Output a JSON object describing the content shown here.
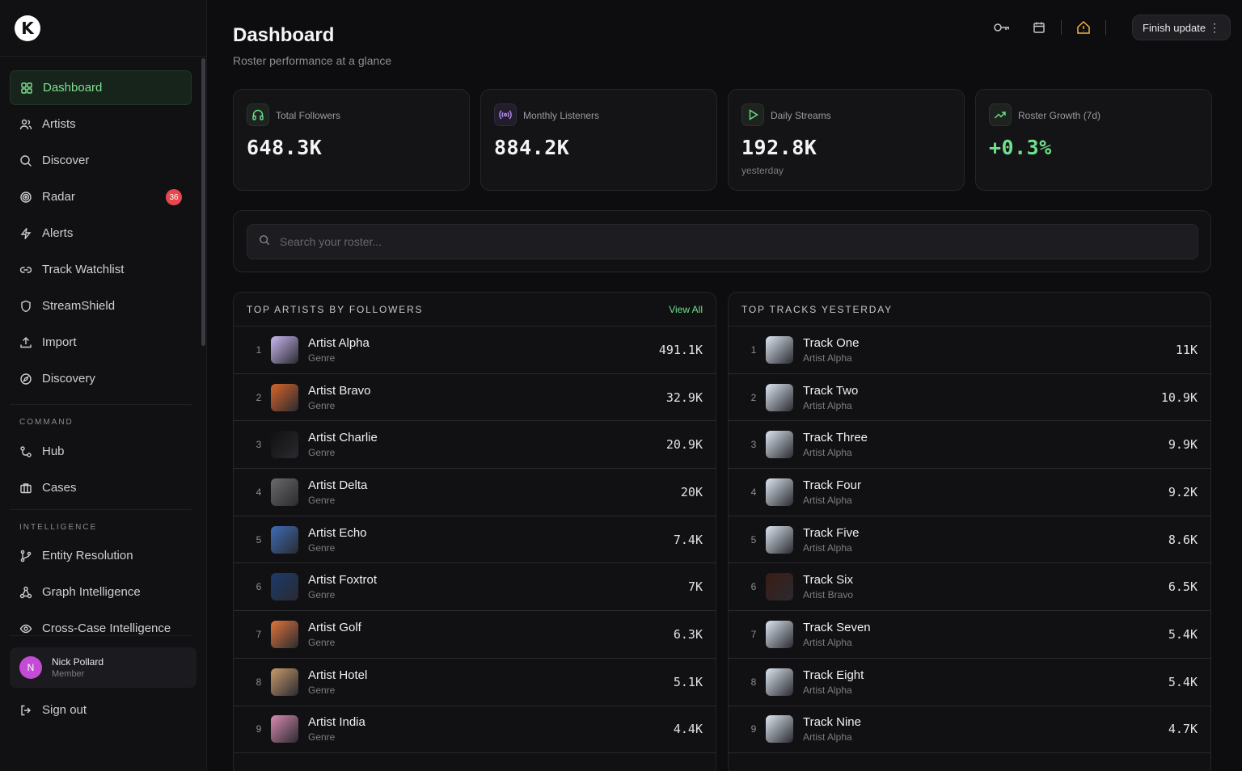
{
  "app": {
    "logo_letter": "K"
  },
  "sidebar": {
    "items": [
      {
        "label": "Dashboard",
        "icon": "grid-icon",
        "active": true
      },
      {
        "label": "Artists",
        "icon": "users-icon"
      },
      {
        "label": "Discover",
        "icon": "search-icon"
      },
      {
        "label": "Radar",
        "icon": "radar-icon",
        "badge": "36"
      },
      {
        "label": "Alerts",
        "icon": "bolt-icon"
      },
      {
        "label": "Track Watchlist",
        "icon": "link-icon"
      },
      {
        "label": "StreamShield",
        "icon": "shield-icon"
      },
      {
        "label": "Import",
        "icon": "upload-icon"
      },
      {
        "label": "Discovery",
        "icon": "compass-icon"
      }
    ],
    "command_label": "COMMAND",
    "command_items": [
      {
        "label": "Hub",
        "icon": "hub-icon"
      },
      {
        "label": "Cases",
        "icon": "briefcase-icon"
      }
    ],
    "intelligence_label": "INTELLIGENCE",
    "intelligence_items": [
      {
        "label": "Entity Resolution",
        "icon": "git-branch-icon"
      },
      {
        "label": "Graph Intelligence",
        "icon": "graph-icon"
      },
      {
        "label": "Cross-Case Intelligence",
        "icon": "eye-icon"
      }
    ],
    "user": {
      "initial": "N",
      "name": "Nick Pollard",
      "role": "Member"
    },
    "sign_out": "Sign out"
  },
  "header": {
    "title": "Dashboard",
    "subtitle": "Roster performance at a glance",
    "finish_update": "Finish update"
  },
  "stats": [
    {
      "label": "Total Followers",
      "value": "648.3K",
      "icon": "headphones-icon"
    },
    {
      "label": "Monthly Listeners",
      "value": "884.2K",
      "icon": "broadcast-icon"
    },
    {
      "label": "Daily Streams",
      "value": "192.8K",
      "note": "yesterday",
      "icon": "play-icon"
    },
    {
      "label": "Roster Growth (7d)",
      "value": "+0.3%",
      "icon": "trending-up-icon"
    }
  ],
  "search": {
    "placeholder": "Search your roster..."
  },
  "top_artists": {
    "title": "TOP ARTISTS BY FOLLOWERS",
    "view_all": "View All",
    "rows": [
      {
        "rank": "1",
        "name": "Artist Alpha",
        "sub": "Genre",
        "value": "491.1K",
        "color": "#c9b8f0"
      },
      {
        "rank": "2",
        "name": "Artist Bravo",
        "sub": "Genre",
        "value": "32.9K",
        "color": "#d8642a"
      },
      {
        "rank": "3",
        "name": "Artist Charlie",
        "sub": "Genre",
        "value": "20.9K",
        "color": "#101010"
      },
      {
        "rank": "4",
        "name": "Artist Delta",
        "sub": "Genre",
        "value": "20K",
        "color": "#6a6a6a"
      },
      {
        "rank": "5",
        "name": "Artist Echo",
        "sub": "Genre",
        "value": "7.4K",
        "color": "#3d6db8"
      },
      {
        "rank": "6",
        "name": "Artist Foxtrot",
        "sub": "Genre",
        "value": "7K",
        "color": "#1b3a6b"
      },
      {
        "rank": "7",
        "name": "Artist Golf",
        "sub": "Genre",
        "value": "6.3K",
        "color": "#e0743a"
      },
      {
        "rank": "8",
        "name": "Artist Hotel",
        "sub": "Genre",
        "value": "5.1K",
        "color": "#c89a6a"
      },
      {
        "rank": "9",
        "name": "Artist India",
        "sub": "Genre",
        "value": "4.4K",
        "color": "#d98ab0"
      }
    ]
  },
  "top_tracks": {
    "title": "TOP TRACKS YESTERDAY",
    "rows": [
      {
        "rank": "1",
        "name": "Track One",
        "sub": "Artist Alpha",
        "value": "11K",
        "color": "#dce6f0"
      },
      {
        "rank": "2",
        "name": "Track Two",
        "sub": "Artist Alpha",
        "value": "10.9K",
        "color": "#dce6f0"
      },
      {
        "rank": "3",
        "name": "Track Three",
        "sub": "Artist Alpha",
        "value": "9.9K",
        "color": "#dce6f0"
      },
      {
        "rank": "4",
        "name": "Track Four",
        "sub": "Artist Alpha",
        "value": "9.2K",
        "color": "#dce6f0"
      },
      {
        "rank": "5",
        "name": "Track Five",
        "sub": "Artist Alpha",
        "value": "8.6K",
        "color": "#dce6f0"
      },
      {
        "rank": "6",
        "name": "Track Six",
        "sub": "Artist Bravo",
        "value": "6.5K",
        "color": "#3a1c14"
      },
      {
        "rank": "7",
        "name": "Track Seven",
        "sub": "Artist Alpha",
        "value": "5.4K",
        "color": "#dce6f0"
      },
      {
        "rank": "8",
        "name": "Track Eight",
        "sub": "Artist Alpha",
        "value": "5.4K",
        "color": "#dce6f0"
      },
      {
        "rank": "9",
        "name": "Track Nine",
        "sub": "Artist Alpha",
        "value": "4.7K",
        "color": "#dce6f0"
      }
    ]
  },
  "colors": {
    "accent": "#6fe08a",
    "badge": "#e5484d",
    "background": "#0d0d0f"
  }
}
